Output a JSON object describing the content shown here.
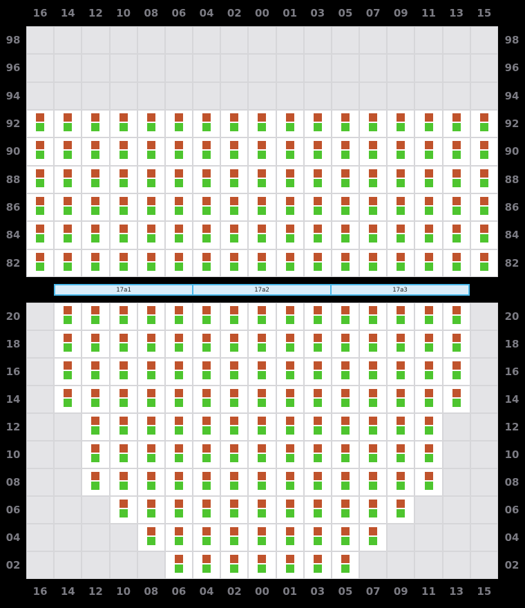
{
  "columns": [
    "16",
    "14",
    "12",
    "10",
    "08",
    "06",
    "04",
    "02",
    "00",
    "01",
    "03",
    "05",
    "07",
    "09",
    "11",
    "13",
    "15"
  ],
  "deck": {
    "rows": [
      {
        "label": "98",
        "from": null,
        "to": null
      },
      {
        "label": "96",
        "from": null,
        "to": null
      },
      {
        "label": "94",
        "from": null,
        "to": null
      },
      {
        "label": "92",
        "from": 0,
        "to": 16
      },
      {
        "label": "90",
        "from": 0,
        "to": 16
      },
      {
        "label": "88",
        "from": 0,
        "to": 16
      },
      {
        "label": "86",
        "from": 0,
        "to": 16
      },
      {
        "label": "84",
        "from": 0,
        "to": 16
      },
      {
        "label": "82",
        "from": 0,
        "to": 16
      }
    ]
  },
  "hatch_covers": {
    "segments": [
      {
        "label": "17a1"
      },
      {
        "label": "17a2"
      },
      {
        "label": "17a3"
      }
    ]
  },
  "hold": {
    "rows": [
      {
        "label": "20",
        "from": 1,
        "to": 15
      },
      {
        "label": "18",
        "from": 1,
        "to": 15
      },
      {
        "label": "16",
        "from": 1,
        "to": 15
      },
      {
        "label": "14",
        "from": 1,
        "to": 15
      },
      {
        "label": "12",
        "from": 2,
        "to": 14
      },
      {
        "label": "10",
        "from": 2,
        "to": 14
      },
      {
        "label": "08",
        "from": 2,
        "to": 14
      },
      {
        "label": "06",
        "from": 3,
        "to": 13
      },
      {
        "label": "04",
        "from": 4,
        "to": 12
      },
      {
        "label": "02",
        "from": 5,
        "to": 11
      }
    ]
  },
  "cell_markers": [
    {
      "name": "container-indicator-top",
      "color": "#c0532c"
    },
    {
      "name": "container-indicator-bottom",
      "color": "#4ec52f"
    }
  ],
  "colors": {
    "background": "#000000",
    "label": "#7b7b83",
    "grid_line": "#d6d6d9",
    "empty_cell": "#e4e4e7",
    "occupied_cell": "#ffffff",
    "marker_orange": "#c0532c",
    "marker_green": "#4ec52f",
    "hatch_fill": "#daedf9",
    "hatch_border": "#49b8ea"
  }
}
